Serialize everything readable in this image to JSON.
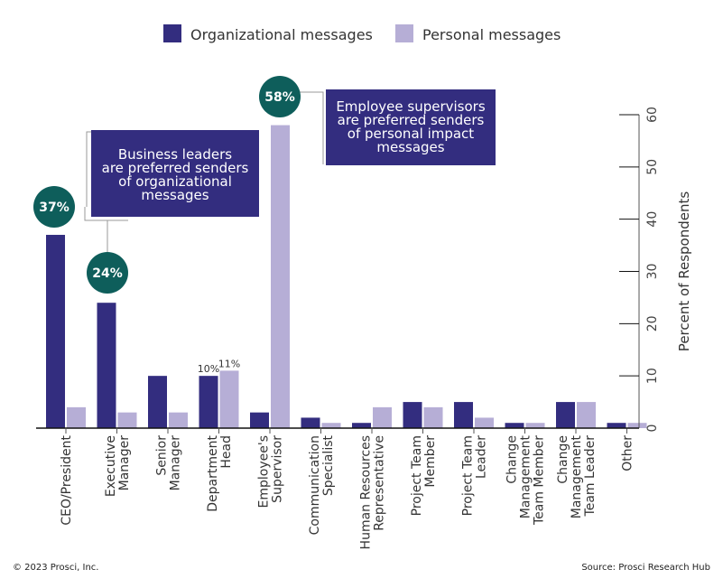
{
  "chart_data": {
    "type": "bar",
    "categories": [
      "CEO/President",
      "Executive Manager",
      "Senior Manager",
      "Department Head",
      "Employee's Supervisor",
      "Communication Specialist",
      "Human Resources Representative",
      "Project Team Member",
      "Project Team Leader",
      "Change Management Team Member",
      "Change Management Team Leader",
      "Other"
    ],
    "category_lines": [
      [
        "CEO/President"
      ],
      [
        "Executive",
        "Manager"
      ],
      [
        "Senior",
        "Manager"
      ],
      [
        "Department",
        "Head"
      ],
      [
        "Employee's",
        "Supervisor"
      ],
      [
        "Communication",
        "Specialist"
      ],
      [
        "Human Resources",
        "Representative"
      ],
      [
        "Project Team",
        "Member"
      ],
      [
        "Project Team",
        "Leader"
      ],
      [
        "Change",
        "Management",
        "Team Member"
      ],
      [
        "Change",
        "Management",
        "Team Leader"
      ],
      [
        "Other"
      ]
    ],
    "series": [
      {
        "name": "Organizational messages",
        "color": "#332d7f",
        "values": [
          37,
          24,
          10,
          10,
          3,
          2,
          1,
          5,
          5,
          1,
          5,
          1
        ]
      },
      {
        "name": "Personal messages",
        "color": "#b6aed6",
        "values": [
          4,
          3,
          3,
          11,
          58,
          1,
          4,
          4,
          2,
          1,
          5,
          1
        ]
      }
    ],
    "ylabel": "Percent of Respondents",
    "ylim": [
      0,
      60
    ],
    "yticks": [
      0,
      10,
      20,
      30,
      40,
      50,
      60
    ],
    "y_axis_side": "right",
    "legend": "top",
    "data_labels": [
      {
        "category": 3,
        "series": 0,
        "text": "10%"
      },
      {
        "category": 3,
        "series": 1,
        "text": "11%"
      }
    ],
    "badges": [
      {
        "category": 0,
        "series": 0,
        "text": "37%"
      },
      {
        "category": 1,
        "series": 0,
        "text": "24%"
      },
      {
        "category": 4,
        "series": 1,
        "text": "58%"
      }
    ],
    "badge_color": "#0e5e5b",
    "callouts": [
      {
        "lines": [
          "Business leaders",
          "are preferred senders",
          "of organizational",
          "messages"
        ]
      },
      {
        "lines": [
          "Employee supervisors",
          "are preferred senders",
          "of personal impact",
          "messages"
        ]
      }
    ]
  },
  "footer": {
    "copyright": "© 2023 Prosci, Inc.",
    "source": "Source: Prosci Research Hub"
  }
}
